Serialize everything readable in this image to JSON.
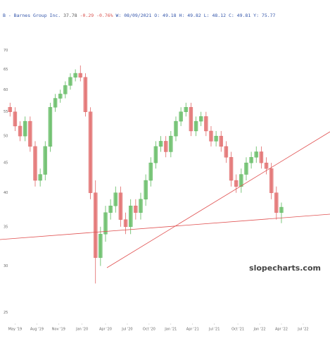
{
  "chart_data": {
    "type": "candlestick",
    "header": {
      "name": "B - Barnes Group Inc.",
      "last": "37.78",
      "change": "-0.29 -0.76%",
      "detail": "W: 08/09/2021 O: 49.18 H: 49.82 L: 48.12 C: 49.81 Y: 75.77"
    },
    "watermark": "slopecharts.com",
    "x": [
      -3,
      0,
      3,
      6,
      9,
      12,
      15,
      18,
      21,
      24,
      27,
      30,
      33,
      36,
      39,
      42,
      45,
      48,
      51,
      54,
      57,
      60,
      63,
      66,
      69,
      72,
      75,
      78,
      81,
      84,
      87,
      90,
      93,
      96,
      99,
      102,
      105,
      108,
      111,
      114,
      117,
      120,
      123,
      126,
      129,
      132,
      135,
      138,
      141,
      144,
      147,
      150,
      153,
      156,
      159
    ],
    "open": [
      56,
      55,
      52,
      50,
      53,
      48,
      42,
      43,
      48,
      56,
      58,
      59,
      61,
      63,
      64,
      63,
      55,
      40,
      31,
      34,
      37,
      38,
      40,
      36,
      35,
      38,
      37,
      39,
      42,
      45,
      48,
      49,
      47,
      50,
      53,
      55,
      56,
      51,
      53,
      54,
      51,
      49,
      50,
      48,
      46,
      42,
      41,
      43,
      45,
      46,
      47,
      45,
      44,
      40,
      37
    ],
    "high": [
      57,
      56,
      53,
      54,
      54,
      49,
      44,
      49,
      57,
      59,
      60,
      62,
      64,
      65,
      66,
      64,
      56,
      42,
      35,
      38,
      39,
      41,
      41,
      37,
      39,
      39,
      40,
      43,
      46,
      49,
      50,
      50,
      51,
      54,
      56,
      57,
      57,
      54,
      55,
      55,
      52,
      51,
      51,
      49,
      47,
      43,
      44,
      46,
      47,
      48,
      48,
      46,
      45,
      41,
      38.5
    ],
    "low": [
      54,
      51,
      49,
      49,
      47,
      41,
      41,
      42,
      47,
      55,
      57,
      58,
      60,
      62,
      62,
      54,
      39,
      28,
      30,
      33,
      36,
      37,
      35,
      34,
      34,
      36,
      36,
      38,
      41,
      44,
      47,
      46,
      46,
      49,
      52,
      54,
      50,
      50,
      52,
      50,
      48,
      48,
      47,
      45,
      41,
      40,
      40,
      42,
      44,
      45,
      44,
      43,
      39,
      36,
      35.5
    ],
    "close": [
      55,
      52,
      50,
      53,
      48,
      42,
      43,
      48,
      56,
      58,
      59,
      61,
      63,
      64,
      63,
      55,
      40,
      31,
      34,
      37,
      38,
      40,
      36,
      35,
      38,
      37,
      39,
      42,
      45,
      48,
      49,
      47,
      50,
      53,
      55,
      56,
      51,
      53,
      54,
      51,
      49,
      50,
      48,
      46,
      42,
      41,
      43,
      45,
      46,
      47,
      45,
      44,
      40,
      37,
      37.8
    ],
    "up_color": "#5cb85c",
    "down_color": "#e06666",
    "xlim": [
      -9,
      188
    ],
    "xticks": [
      {
        "value": 0,
        "label": "May '19"
      },
      {
        "value": 13,
        "label": "Aug '19"
      },
      {
        "value": 26,
        "label": "Nov '19"
      },
      {
        "value": 40,
        "label": "Jan '20"
      },
      {
        "value": 54,
        "label": "Apr '20"
      },
      {
        "value": 67,
        "label": "Jul '20"
      },
      {
        "value": 80,
        "label": "Oct '20"
      },
      {
        "value": 93,
        "label": "Jan '21"
      },
      {
        "value": 106,
        "label": "Apr '21"
      },
      {
        "value": 119,
        "label": "Jul '21"
      },
      {
        "value": 133,
        "label": "Oct '21"
      },
      {
        "value": 146,
        "label": "Jan '22"
      },
      {
        "value": 159,
        "label": "Apr '22"
      },
      {
        "value": 172,
        "label": "Jul '22"
      }
    ],
    "ylim": [
      24,
      76
    ],
    "log_scale": true,
    "yticks": [
      25,
      30,
      35,
      40,
      45,
      50,
      55,
      60,
      65,
      70
    ],
    "grid": false
  }
}
